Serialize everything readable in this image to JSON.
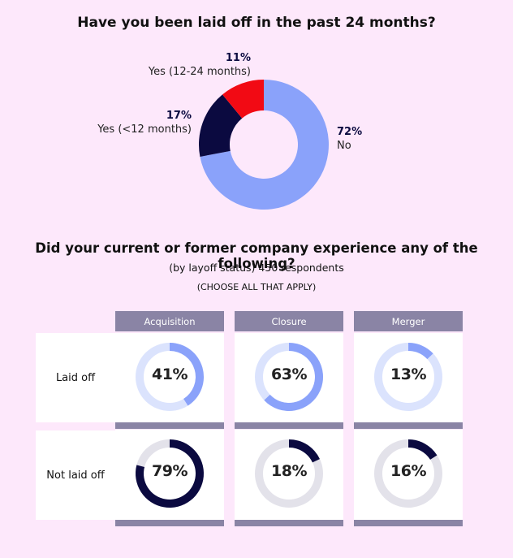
{
  "chart_data": [
    {
      "type": "pie",
      "title": "Have you been laid off in the past 24 months?",
      "slices": [
        {
          "label": "No",
          "value": 72,
          "display": "72%",
          "color": "#8aa2fa"
        },
        {
          "label": "Yes (<12 months)",
          "value": 17,
          "display": "17%",
          "color": "#0b0a40"
        },
        {
          "label": "Yes (12-24 months)",
          "value": 11,
          "display": "11%",
          "color": "#f20a14"
        }
      ]
    },
    {
      "type": "pie",
      "title": "Did your current or former company experience any of the following?",
      "subtitle": "(by layoff status) 450 respondents",
      "note": "(CHOOSE ALL THAT APPLY)",
      "columns": [
        "Acquisition",
        "Closure",
        "Merger"
      ],
      "rows": [
        {
          "label": "Laid off",
          "color": "#8aa2fa",
          "track_color": "#dbe3fd",
          "values": [
            41,
            63,
            13
          ],
          "display": [
            "41%",
            "63%",
            "13%"
          ]
        },
        {
          "label": "Not laid off",
          "color": "#0b0a40",
          "track_color": "#e3e2ea",
          "values": [
            79,
            18,
            16
          ],
          "display": [
            "79%",
            "18%",
            "16%"
          ]
        }
      ]
    }
  ]
}
